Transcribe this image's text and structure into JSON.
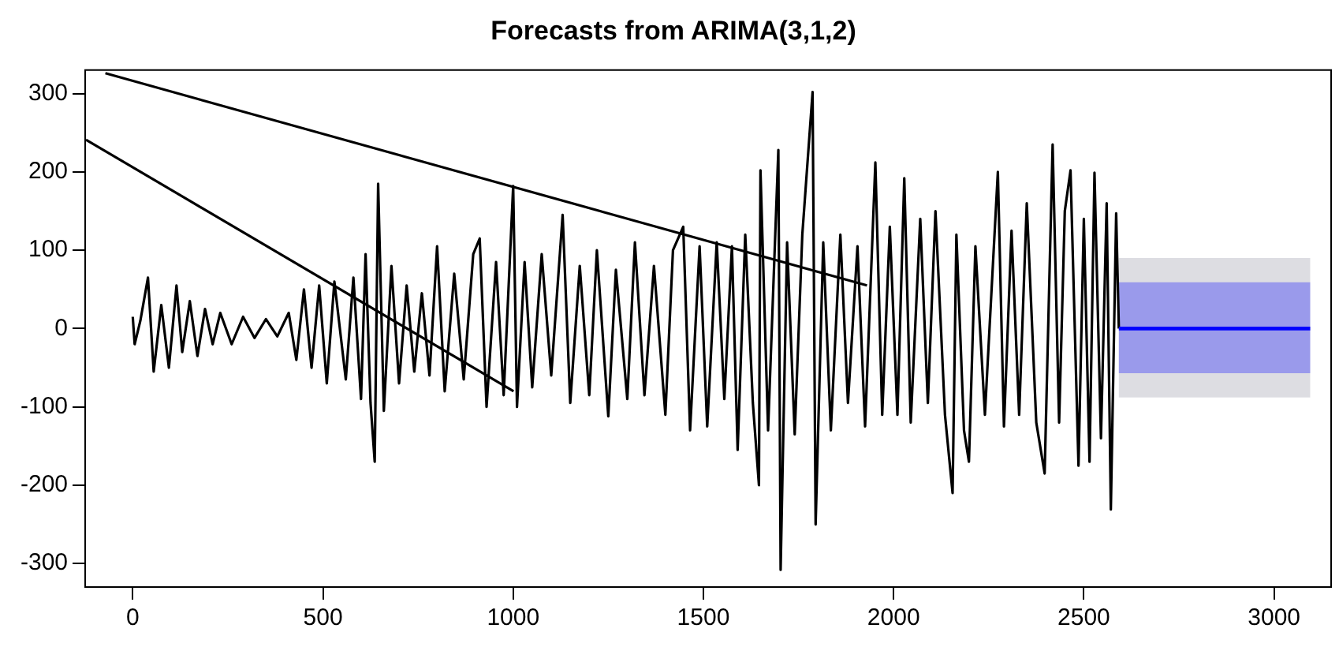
{
  "chart_data": {
    "type": "line",
    "title": "Forecasts from ARIMA(3,1,2)",
    "xlim": [
      -125,
      3150
    ],
    "xticks": [
      0,
      500,
      1000,
      1500,
      2000,
      2500,
      3000
    ],
    "ylim": [
      -330,
      330
    ],
    "yticks": [
      -300,
      -200,
      -100,
      0,
      100,
      200,
      300
    ],
    "grid": false,
    "legend": false,
    "marker": "none",
    "line_style": "solid",
    "series": [
      {
        "color": "#000000",
        "x": [
          0,
          5,
          20,
          40,
          55,
          75,
          95,
          115,
          130,
          150,
          170,
          190,
          210,
          230,
          260,
          290,
          320,
          350,
          380,
          410,
          430,
          450,
          470,
          490,
          510,
          530,
          560,
          580,
          600,
          612,
          625,
          636,
          645,
          660,
          680,
          700,
          720,
          740,
          760,
          780,
          800,
          820,
          845,
          870,
          895,
          912,
          930,
          955,
          975,
          1000,
          1010,
          1030,
          1050,
          1075,
          1100,
          1130,
          1150,
          1175,
          1200,
          1220,
          1250,
          1270,
          1300,
          1320,
          1345,
          1370,
          1400,
          1420,
          1447,
          1465,
          1490,
          1510,
          1535,
          1555,
          1575,
          1590,
          1610,
          1630,
          1646,
          1650,
          1670,
          1697,
          1703,
          1720,
          1740,
          1760,
          1787,
          1795,
          1815,
          1835,
          1860,
          1880,
          1905,
          1925,
          1952,
          1970,
          1990,
          2010,
          2028,
          2045,
          2070,
          2090,
          2110,
          2135,
          2155,
          2165,
          2185,
          2198,
          2215,
          2240,
          2274,
          2290,
          2310,
          2330,
          2350,
          2375,
          2397,
          2418,
          2435,
          2450,
          2465,
          2486,
          2500,
          2515,
          2528,
          2545,
          2560,
          2571,
          2585,
          2592
        ],
        "values": [
          15,
          -20,
          10,
          65,
          -55,
          30,
          -50,
          55,
          -30,
          35,
          -35,
          25,
          -20,
          20,
          -20,
          15,
          -12,
          12,
          -10,
          20,
          -40,
          50,
          -50,
          55,
          -70,
          60,
          -65,
          65,
          -90,
          95,
          -95,
          -170,
          185,
          -105,
          80,
          -70,
          55,
          -55,
          45,
          -60,
          105,
          -80,
          70,
          -65,
          95,
          115,
          -100,
          85,
          -85,
          182,
          -100,
          85,
          -75,
          95,
          -60,
          145,
          -95,
          80,
          -85,
          100,
          -112,
          75,
          -90,
          110,
          -85,
          80,
          -110,
          100,
          130,
          -130,
          105,
          -125,
          110,
          -90,
          105,
          -155,
          120,
          -95,
          -200,
          202,
          -130,
          228,
          -308,
          110,
          -135,
          120,
          302,
          -250,
          110,
          -130,
          120,
          -95,
          105,
          -125,
          212,
          -110,
          130,
          -110,
          192,
          -120,
          140,
          -95,
          150,
          -110,
          -210,
          120,
          -130,
          -170,
          105,
          -110,
          200,
          -125,
          125,
          -110,
          160,
          -120,
          -185,
          235,
          -120,
          150,
          202,
          -175,
          140,
          -170,
          199,
          -140,
          160,
          -231,
          147,
          0
        ]
      },
      {
        "color": "#000000",
        "x": [
          -72,
          1930
        ],
        "values": [
          326,
          55
        ]
      },
      {
        "color": "#000000",
        "x": [
          -123,
          1001
        ],
        "values": [
          241,
          -80
        ]
      },
      {
        "color": "#8f8f9f",
        "x": [
          2592,
          3095
        ],
        "values": [
          null,
          null
        ],
        "lower": [
          -88,
          -88
        ],
        "upper": [
          90,
          90
        ]
      },
      {
        "color": "#0000ff",
        "x": [
          2592,
          3095
        ],
        "values": [
          0,
          0
        ],
        "lower": [
          -57,
          -57
        ],
        "upper": [
          59,
          59
        ]
      }
    ]
  }
}
